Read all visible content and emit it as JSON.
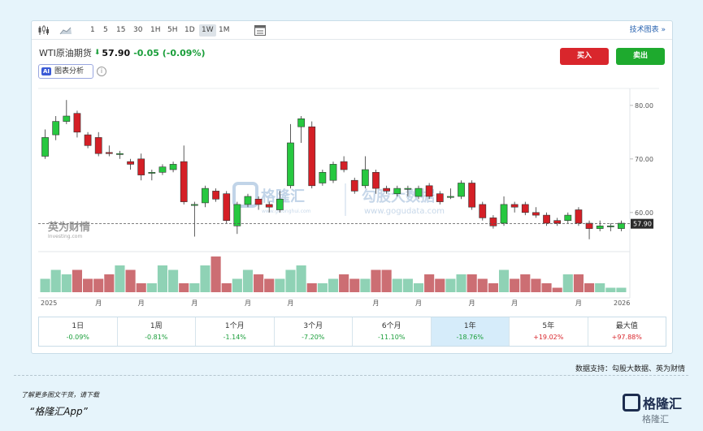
{
  "toolbar": {
    "icons": [
      "candlestick-icon",
      "area-chart-icon",
      "calendar-icon"
    ],
    "intervals": [
      "1",
      "5",
      "15",
      "30",
      "1H",
      "5H",
      "1D",
      "1W",
      "1M"
    ],
    "active_interval": "1W",
    "tech_chart_label": "技术图表 »"
  },
  "header": {
    "name": "WTI原油期货",
    "price": "57.90",
    "change": "-0.05 (-0.09%)",
    "ai_badge": "AI",
    "ai_label": "图表分析",
    "info_glyph": "i"
  },
  "actions": {
    "buy_label": "买入",
    "sell_label": "卖出"
  },
  "colors": {
    "up": "#27c840",
    "down": "#d41f26",
    "vol_up": "#8fd2b5",
    "vol_down": "#cc6e73",
    "accent": "#2a64b0"
  },
  "chart_data": {
    "type": "candlestick",
    "y_ticks": [
      "80.00",
      "70.00",
      "60.00"
    ],
    "ylim": [
      53,
      83
    ],
    "last_price_label": "57.90",
    "last_price": 57.9,
    "x_labels": [
      "2025",
      "月",
      "月",
      "月",
      "月",
      "月",
      "月",
      "月",
      "月",
      "月",
      "月",
      "2026"
    ],
    "x_label_index": [
      0,
      5,
      9,
      14,
      19,
      23,
      31,
      35,
      40,
      44,
      50,
      54
    ],
    "watermarks": {
      "investing_brand": "英为财情",
      "investing_sub": "Investing.com",
      "glh_brand": "格隆汇",
      "glh_sub": "www.gelonghui.com",
      "ggd_brand": "勾股大数据",
      "ggd_sub": "www.gogudata.com"
    },
    "candles": [
      {
        "o": 70.5,
        "c": 74.0,
        "h": 75.5,
        "l": 70.0
      },
      {
        "o": 74.5,
        "c": 77.0,
        "h": 78.0,
        "l": 73.5
      },
      {
        "o": 77.0,
        "c": 78.0,
        "h": 81.0,
        "l": 76.5
      },
      {
        "o": 78.5,
        "c": 75.0,
        "h": 79.0,
        "l": 74.0
      },
      {
        "o": 74.5,
        "c": 72.5,
        "h": 75.0,
        "l": 72.0
      },
      {
        "o": 74.0,
        "c": 71.0,
        "h": 75.0,
        "l": 70.5
      },
      {
        "o": 71.2,
        "c": 71.0,
        "h": 72.5,
        "l": 70.5
      },
      {
        "o": 71.0,
        "c": 71.0,
        "h": 71.5,
        "l": 70.0
      },
      {
        "o": 69.5,
        "c": 69.0,
        "h": 70.0,
        "l": 68.0
      },
      {
        "o": 70.0,
        "c": 67.0,
        "h": 71.0,
        "l": 66.0
      },
      {
        "o": 67.5,
        "c": 67.5,
        "h": 68.0,
        "l": 66.0
      },
      {
        "o": 67.5,
        "c": 68.5,
        "h": 69.0,
        "l": 67.0
      },
      {
        "o": 68.0,
        "c": 69.0,
        "h": 69.5,
        "l": 67.5
      },
      {
        "o": 69.5,
        "c": 62.0,
        "h": 72.5,
        "l": 61.5
      },
      {
        "o": 61.5,
        "c": 61.5,
        "h": 62.0,
        "l": 55.5
      },
      {
        "o": 61.8,
        "c": 64.5,
        "h": 65.0,
        "l": 61.0
      },
      {
        "o": 64.0,
        "c": 62.5,
        "h": 64.5,
        "l": 62.0
      },
      {
        "o": 63.5,
        "c": 58.5,
        "h": 64.0,
        "l": 58.0
      },
      {
        "o": 57.5,
        "c": 61.5,
        "h": 62.0,
        "l": 56.0
      },
      {
        "o": 61.5,
        "c": 63.0,
        "h": 63.5,
        "l": 61.0
      },
      {
        "o": 62.5,
        "c": 61.5,
        "h": 63.0,
        "l": 60.5
      },
      {
        "o": 61.5,
        "c": 61.0,
        "h": 62.0,
        "l": 60.0
      },
      {
        "o": 60.5,
        "c": 62.5,
        "h": 64.0,
        "l": 60.0
      },
      {
        "o": 65.0,
        "c": 73.0,
        "h": 76.5,
        "l": 64.5
      },
      {
        "o": 76.0,
        "c": 77.5,
        "h": 78.0,
        "l": 73.0
      },
      {
        "o": 76.0,
        "c": 65.0,
        "h": 77.0,
        "l": 64.5
      },
      {
        "o": 65.5,
        "c": 67.5,
        "h": 68.0,
        "l": 65.0
      },
      {
        "o": 66.0,
        "c": 69.0,
        "h": 69.5,
        "l": 65.5
      },
      {
        "o": 69.5,
        "c": 68.0,
        "h": 70.5,
        "l": 67.5
      },
      {
        "o": 66.0,
        "c": 64.0,
        "h": 66.5,
        "l": 63.5
      },
      {
        "o": 65.0,
        "c": 68.0,
        "h": 70.5,
        "l": 64.5
      },
      {
        "o": 67.5,
        "c": 64.5,
        "h": 68.0,
        "l": 63.5
      },
      {
        "o": 64.5,
        "c": 64.0,
        "h": 65.0,
        "l": 63.5
      },
      {
        "o": 63.5,
        "c": 64.5,
        "h": 65.0,
        "l": 63.0
      },
      {
        "o": 64.5,
        "c": 64.5,
        "h": 65.0,
        "l": 63.0
      },
      {
        "o": 63.0,
        "c": 64.5,
        "h": 65.0,
        "l": 62.5
      },
      {
        "o": 65.0,
        "c": 63.0,
        "h": 65.5,
        "l": 62.5
      },
      {
        "o": 63.5,
        "c": 62.0,
        "h": 64.0,
        "l": 61.5
      },
      {
        "o": 63.0,
        "c": 63.0,
        "h": 64.5,
        "l": 62.5
      },
      {
        "o": 63.0,
        "c": 65.5,
        "h": 66.0,
        "l": 62.5
      },
      {
        "o": 65.5,
        "c": 61.0,
        "h": 66.0,
        "l": 60.5
      },
      {
        "o": 61.5,
        "c": 59.0,
        "h": 62.0,
        "l": 58.5
      },
      {
        "o": 59.0,
        "c": 57.5,
        "h": 59.5,
        "l": 57.0
      },
      {
        "o": 58.0,
        "c": 61.5,
        "h": 63.0,
        "l": 57.5
      },
      {
        "o": 61.5,
        "c": 61.0,
        "h": 62.0,
        "l": 60.0
      },
      {
        "o": 61.5,
        "c": 60.0,
        "h": 62.0,
        "l": 59.5
      },
      {
        "o": 60.0,
        "c": 59.5,
        "h": 61.0,
        "l": 59.0
      },
      {
        "o": 59.5,
        "c": 58.0,
        "h": 60.0,
        "l": 57.5
      },
      {
        "o": 58.5,
        "c": 58.0,
        "h": 59.0,
        "l": 57.5
      },
      {
        "o": 58.5,
        "c": 59.5,
        "h": 60.0,
        "l": 58.0
      },
      {
        "o": 60.5,
        "c": 58.0,
        "h": 61.0,
        "l": 57.5
      },
      {
        "o": 58.0,
        "c": 57.0,
        "h": 58.5,
        "l": 55.0
      },
      {
        "o": 57.0,
        "c": 57.5,
        "h": 58.5,
        "l": 56.5
      },
      {
        "o": 57.5,
        "c": 57.5,
        "h": 58.0,
        "l": 56.5
      },
      {
        "o": 57.0,
        "c": 58.0,
        "h": 58.5,
        "l": 56.5
      }
    ],
    "volume": [
      3,
      5,
      4,
      5,
      3,
      3,
      4,
      6,
      5,
      2,
      2,
      6,
      5,
      2,
      2,
      6,
      8,
      2,
      3,
      5,
      4,
      3,
      3,
      5,
      6,
      2,
      2,
      3,
      4,
      3,
      3,
      5,
      5,
      3,
      3,
      2,
      4,
      3,
      3,
      4,
      4,
      3,
      2,
      5,
      3,
      4,
      3,
      2,
      1,
      4,
      4,
      2,
      2,
      1,
      1
    ],
    "vol_max": 8
  },
  "periods": [
    {
      "label": "1日",
      "value": "-0.09%",
      "dir": "neg"
    },
    {
      "label": "1周",
      "value": "-0.81%",
      "dir": "neg"
    },
    {
      "label": "1个月",
      "value": "-1.14%",
      "dir": "neg"
    },
    {
      "label": "3个月",
      "value": "-7.20%",
      "dir": "neg"
    },
    {
      "label": "6个月",
      "value": "-11.10%",
      "dir": "neg"
    },
    {
      "label": "1年",
      "value": "-18.76%",
      "dir": "neg",
      "active": true
    },
    {
      "label": "5年",
      "value": "+19.02%",
      "dir": "pos"
    },
    {
      "label": "最大值",
      "value": "+97.88%",
      "dir": "pos"
    }
  ],
  "footer": {
    "source": "数据支持：勾股大数据、英为财情",
    "download_text": "了解更多图文干货，请下载",
    "app_name": "“格隆汇App”",
    "brand": "格隆汇",
    "brand_watermark": "格隆汇"
  }
}
